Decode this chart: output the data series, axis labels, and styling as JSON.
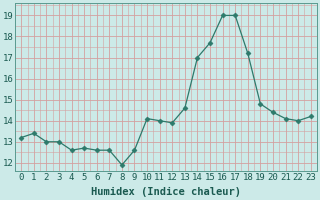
{
  "x": [
    0,
    1,
    2,
    3,
    4,
    5,
    6,
    7,
    8,
    9,
    10,
    11,
    12,
    13,
    14,
    15,
    16,
    17,
    18,
    19,
    20,
    21,
    22,
    23
  ],
  "y": [
    13.2,
    13.4,
    13.0,
    13.0,
    12.6,
    12.7,
    12.6,
    12.6,
    11.9,
    12.6,
    14.1,
    14.0,
    13.9,
    14.6,
    17.0,
    17.7,
    19.0,
    19.0,
    17.2,
    14.8,
    14.4,
    14.1,
    14.0,
    14.2
  ],
  "line_color": "#2d7a6b",
  "marker": "D",
  "marker_size": 2.5,
  "background_color": "#cceae8",
  "grid_color_major": "#d4a0a0",
  "grid_color_minor": "#d4a0a0",
  "xlabel": "Humidex (Indice chaleur)",
  "ylabel_ticks": [
    12,
    13,
    14,
    15,
    16,
    17,
    18,
    19
  ],
  "xlim": [
    -0.5,
    23.5
  ],
  "ylim": [
    11.6,
    19.6
  ],
  "xtick_labels": [
    "0",
    "1",
    "2",
    "3",
    "4",
    "5",
    "6",
    "7",
    "8",
    "9",
    "10",
    "11",
    "12",
    "13",
    "14",
    "15",
    "16",
    "17",
    "18",
    "19",
    "20",
    "21",
    "22",
    "23"
  ],
  "axis_fontsize": 6.5,
  "label_fontsize": 7.5
}
